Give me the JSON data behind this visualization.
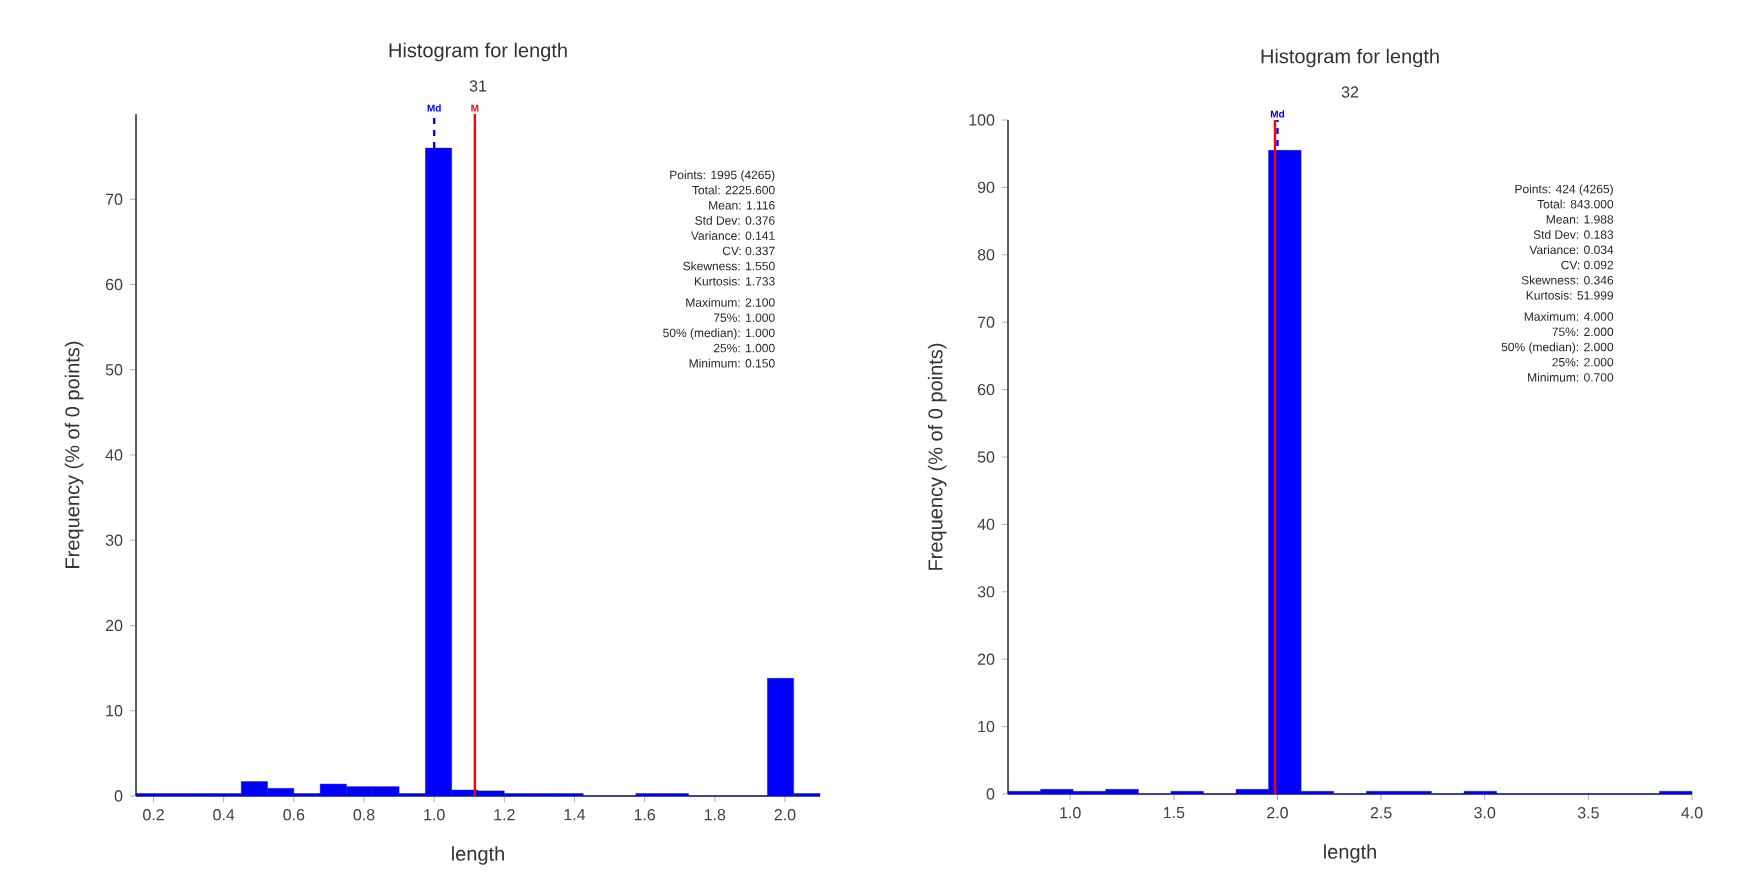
{
  "chart_data": [
    {
      "type": "histogram",
      "title": "Histogram for length",
      "subtitle": "31",
      "xlabel": "length",
      "ylabel": "Frequency (% of 0 points)",
      "color": "#0000ff",
      "bins": [
        0.15,
        0.225,
        0.3,
        0.375,
        0.45,
        0.525,
        0.6,
        0.675,
        0.75,
        0.825,
        0.9,
        0.975,
        1.05,
        1.125,
        1.2,
        1.275,
        1.35,
        1.425,
        1.5,
        1.575,
        1.65,
        1.725,
        1.8,
        1.875,
        1.95,
        2.025,
        2.1
      ],
      "values": [
        0.3,
        0.3,
        0.3,
        0.3,
        1.7,
        0.9,
        0.3,
        1.4,
        1.1,
        1.1,
        0.3,
        76,
        0.7,
        0.6,
        0.3,
        0.3,
        0.3,
        0,
        0,
        0.3,
        0.3,
        0,
        0,
        0,
        13.8,
        0.3
      ],
      "xlim": [
        0.15,
        2.1
      ],
      "ylim": [
        0,
        80
      ],
      "xticks": [
        {
          "value": 0.2,
          "label": "0.2"
        },
        {
          "value": 0.4,
          "label": "0.4"
        },
        {
          "value": 0.6,
          "label": "0.6"
        },
        {
          "value": 0.8,
          "label": "0.8"
        },
        {
          "value": 1.0,
          "label": "1.0"
        },
        {
          "value": 1.2,
          "label": "1.2"
        },
        {
          "value": 1.4,
          "label": "1.4"
        },
        {
          "value": 1.6,
          "label": "1.6"
        },
        {
          "value": 1.8,
          "label": "1.8"
        },
        {
          "value": 2.0,
          "label": "2.0"
        }
      ],
      "yticks": [
        0,
        10,
        20,
        30,
        40,
        50,
        60,
        70
      ],
      "ref_lines": [
        {
          "axis": "x",
          "value": 1.0,
          "label": "Md",
          "color": "#0000ff",
          "line_style": "dashed"
        },
        {
          "axis": "x",
          "value": 1.116,
          "label": "M",
          "color": "#ff0000"
        }
      ],
      "annotations": [
        "Points: 1995 (4265)",
        "Total: 2225.600",
        "Mean: 1.116",
        "Std Dev: 0.376",
        "Variance: 0.141",
        "CV: 0.337",
        "Skewness: 1.550",
        "Kurtosis: 1.733",
        "Maximum: 2.100",
        "75%: 1.000",
        "50% (median): 1.000",
        "25%: 1.000",
        "Minimum: 0.150"
      ]
    },
    {
      "type": "histogram",
      "title": "Histogram for length",
      "subtitle": "32",
      "xlabel": "length",
      "ylabel": "Frequency (% of 0 points)",
      "color": "#0000ff",
      "bins": [
        0.7,
        0.857,
        1.014,
        1.171,
        1.329,
        1.486,
        1.643,
        1.8,
        1.957,
        2.114,
        2.271,
        2.429,
        2.586,
        2.743,
        2.9,
        3.057,
        3.214,
        3.371,
        3.529,
        3.686,
        3.843,
        4.0
      ],
      "values": [
        0.4,
        0.7,
        0.4,
        0.7,
        0,
        0.4,
        0,
        0.7,
        95.5,
        0.4,
        0,
        0.4,
        0.4,
        0,
        0.4,
        0,
        0,
        0,
        0,
        0,
        0.4
      ],
      "xlim": [
        0.7,
        4.0
      ],
      "ylim": [
        0,
        100
      ],
      "xticks": [
        {
          "value": 1.0,
          "label": "1.0"
        },
        {
          "value": 1.5,
          "label": "1.5"
        },
        {
          "value": 2.0,
          "label": "2.0"
        },
        {
          "value": 2.5,
          "label": "2.5"
        },
        {
          "value": 3.0,
          "label": "3.0"
        },
        {
          "value": 3.5,
          "label": "3.5"
        },
        {
          "value": 4.0,
          "label": "4.0"
        }
      ],
      "yticks": [
        0,
        10,
        20,
        30,
        40,
        50,
        60,
        70,
        80,
        90,
        100
      ],
      "ref_lines": [
        {
          "axis": "x",
          "value": 2.0,
          "label": "Md",
          "color": "#0000ff",
          "line_style": "dashed"
        },
        {
          "axis": "x",
          "value": 1.988,
          "color": "#ff0000"
        }
      ],
      "annotations": [
        "Points: 424 (4265)",
        "Total: 843.000",
        "Mean: 1.988",
        "Std Dev: 0.183",
        "Variance: 0.034",
        "CV: 0.092",
        "Skewness: 0.346",
        "Kurtosis: 51.999",
        "Maximum: 4.000",
        "75%: 2.000",
        "50% (median): 2.000",
        "25%: 2.000",
        "Minimum: 0.700"
      ]
    }
  ]
}
